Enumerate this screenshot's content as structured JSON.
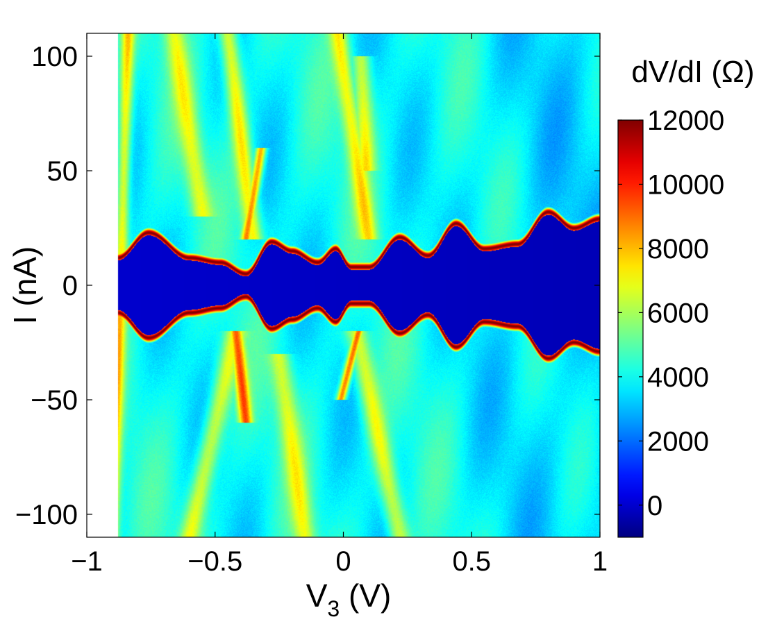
{
  "chart_data": {
    "type": "heatmap",
    "title": "",
    "xlabel_main": "V",
    "xlabel_sub": "3",
    "xlabel_unit": " (V)",
    "ylabel": "I (nA)",
    "colorbar_label": "dV/dI (Ω)",
    "xlim": [
      -1,
      1
    ],
    "ylim": [
      -110,
      110
    ],
    "data_x_range": [
      -0.88,
      1.0
    ],
    "xticks": [
      -1,
      -0.5,
      0,
      0.5,
      1
    ],
    "xtick_labels": [
      "−1",
      "−0.5",
      "0",
      "0.5",
      "1"
    ],
    "yticks": [
      100,
      50,
      0,
      -50,
      -100
    ],
    "ytick_labels": [
      "100",
      "50",
      "0",
      "−50",
      "−100"
    ],
    "clim": [
      -1000,
      12000
    ],
    "colorbar_ticks": [
      12000,
      10000,
      8000,
      6000,
      4000,
      2000,
      0
    ],
    "colorbar_tick_labels": [
      "12000",
      "10000",
      "8000",
      "6000",
      "4000",
      "2000",
      "0"
    ],
    "colormap": "jet",
    "background_resistance": 4000,
    "superconducting_resistance": 0,
    "peak_resistance": 12000,
    "critical_current_edge": {
      "v3": [
        -0.88,
        -0.76,
        -0.6,
        -0.48,
        -0.38,
        -0.28,
        -0.2,
        -0.1,
        -0.03,
        0.03,
        0.1,
        0.22,
        0.33,
        0.44,
        0.55,
        0.68,
        0.8,
        0.9,
        1.0
      ],
      "ic_nA": [
        12,
        23,
        12,
        10,
        5,
        19,
        15,
        10,
        16,
        8,
        8,
        21,
        13,
        27,
        16,
        18,
        32,
        25,
        29
      ]
    },
    "ridges": [
      {
        "v3": [
          -0.9,
          -0.84
        ],
        "i_from": -110,
        "i_to": 110,
        "dvdi": 7500,
        "width": 0.025
      },
      {
        "v3": [
          -0.66,
          -0.55
        ],
        "i_from": 110,
        "i_to": 30,
        "dvdi": 6500,
        "width": 0.04
      },
      {
        "v3": [
          -0.45,
          -0.35
        ],
        "i_from": 110,
        "i_to": 20,
        "dvdi": 7500,
        "width": 0.035
      },
      {
        "v3": [
          -0.32,
          -0.38
        ],
        "i_from": 60,
        "i_to": 20,
        "dvdi": 9000,
        "width": 0.02
      },
      {
        "v3": [
          -0.42,
          -0.38
        ],
        "i_from": -20,
        "i_to": -60,
        "dvdi": 9000,
        "width": 0.025
      },
      {
        "v3": [
          -0.6,
          -0.42
        ],
        "i_from": -110,
        "i_to": -20,
        "dvdi": 7000,
        "width": 0.04
      },
      {
        "v3": [
          0.07,
          0.09
        ],
        "i_from": 100,
        "i_to": 50,
        "dvdi": 7000,
        "width": 0.035
      },
      {
        "v3": [
          -0.02,
          0.1
        ],
        "i_from": 110,
        "i_to": 20,
        "dvdi": 7000,
        "width": 0.035
      },
      {
        "v3": [
          0.06,
          -0.01
        ],
        "i_from": -20,
        "i_to": -50,
        "dvdi": 9500,
        "width": 0.018
      },
      {
        "v3": [
          0.05,
          0.22
        ],
        "i_from": -20,
        "i_to": -110,
        "dvdi": 7000,
        "width": 0.04
      },
      {
        "v3": [
          -0.25,
          -0.15
        ],
        "i_from": -30,
        "i_to": -110,
        "dvdi": 6500,
        "width": 0.04
      }
    ]
  }
}
